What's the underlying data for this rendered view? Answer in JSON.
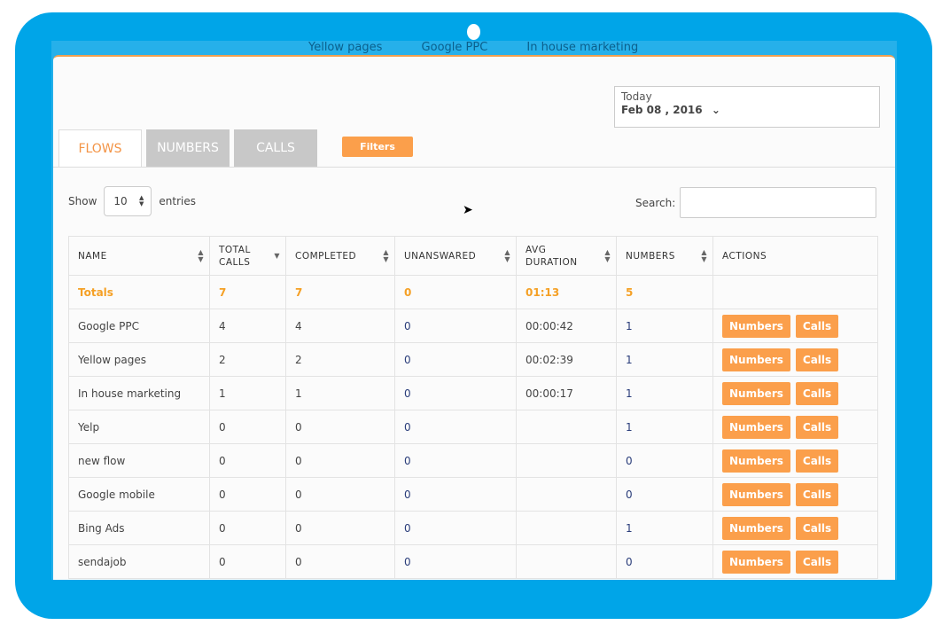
{
  "background_tabs": [
    "Yellow pages",
    "Google PPC",
    "In house marketing"
  ],
  "date": {
    "label": "Today",
    "value": "Feb 08 , 2016"
  },
  "tabs": [
    {
      "label": "FLOWS",
      "active": true
    },
    {
      "label": "NUMBERS"
    },
    {
      "label": "CALLS"
    }
  ],
  "filters_label": "Filters",
  "show": {
    "prefix": "Show",
    "value": "10",
    "suffix": "entries"
  },
  "search": {
    "label": "Search:",
    "value": ""
  },
  "columns": [
    "NAME",
    "TOTAL CALLS",
    "COMPLETED",
    "UNANSWARED",
    "AVG DURATION",
    "NUMBERS",
    "ACTIONS"
  ],
  "totals": {
    "name": "Totals",
    "total": "7",
    "completed": "7",
    "unanswered": "0",
    "avg": "01:13",
    "numbers": "5"
  },
  "rows": [
    {
      "name": "Google PPC",
      "total": "4",
      "completed": "4",
      "unanswered": "0",
      "avg": "00:00:42",
      "numbers": "1"
    },
    {
      "name": "Yellow pages",
      "total": "2",
      "completed": "2",
      "unanswered": "0",
      "avg": "00:02:39",
      "numbers": "1"
    },
    {
      "name": "In house marketing",
      "total": "1",
      "completed": "1",
      "unanswered": "0",
      "avg": "00:00:17",
      "numbers": "1"
    },
    {
      "name": "Yelp",
      "total": "0",
      "completed": "0",
      "unanswered": "0",
      "avg": "",
      "numbers": "1"
    },
    {
      "name": "new flow",
      "total": "0",
      "completed": "0",
      "unanswered": "0",
      "avg": "",
      "numbers": "0"
    },
    {
      "name": "Google mobile",
      "total": "0",
      "completed": "0",
      "unanswered": "0",
      "avg": "",
      "numbers": "0"
    },
    {
      "name": "Bing Ads",
      "total": "0",
      "completed": "0",
      "unanswered": "0",
      "avg": "",
      "numbers": "1"
    },
    {
      "name": "sendajob",
      "total": "0",
      "completed": "0",
      "unanswered": "0",
      "avg": "",
      "numbers": "0"
    }
  ],
  "actions": {
    "numbers": "Numbers",
    "calls": "Calls"
  },
  "colors": {
    "frame": "#00a5e8",
    "accent": "#fb9f4b",
    "totals": "#f5a025"
  }
}
